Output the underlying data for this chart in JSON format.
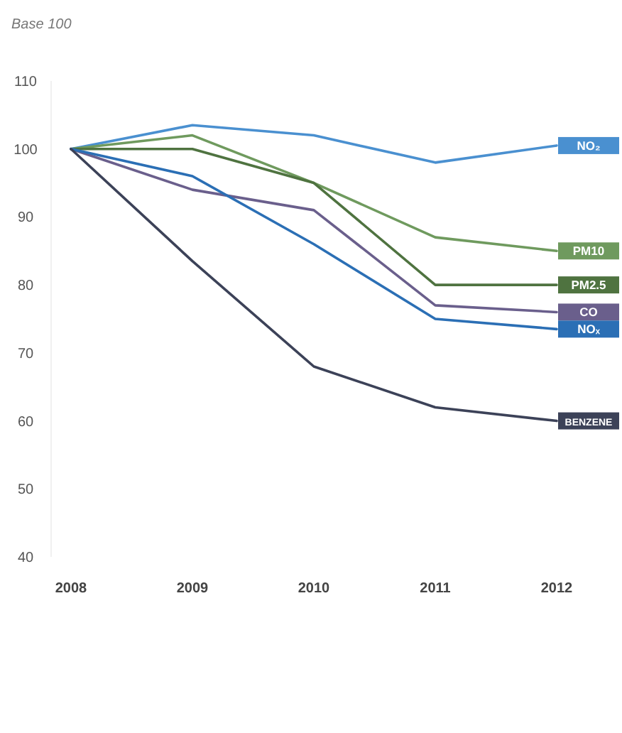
{
  "chart_data": {
    "type": "line",
    "ylabel": "Base 100",
    "categories": [
      "2008",
      "2009",
      "2010",
      "2011",
      "2012"
    ],
    "ylim": [
      40,
      110
    ],
    "yticks": [
      40,
      50,
      60,
      70,
      80,
      90,
      100,
      110
    ],
    "grid": false,
    "legend": "right",
    "marker": "none",
    "line_style": "solid",
    "series": [
      {
        "name": "NO₂",
        "color": "#4a90d0",
        "values": [
          100,
          103.5,
          102,
          98,
          100.5
        ]
      },
      {
        "name": "PM10",
        "color": "#6f9a5e",
        "values": [
          100,
          102,
          95,
          87,
          85
        ]
      },
      {
        "name": "PM2.5",
        "color": "#4f7340",
        "values": [
          100,
          100,
          95,
          80,
          80
        ]
      },
      {
        "name": "CO",
        "color": "#6a5f8c",
        "values": [
          100,
          94,
          91,
          77,
          76
        ]
      },
      {
        "name": "NOₓ",
        "color": "#2b6fb5",
        "values": [
          100,
          96,
          86,
          75,
          73.5
        ]
      },
      {
        "name": "BENZENE",
        "color": "#3c4258",
        "values": [
          100,
          83.5,
          68,
          62,
          60
        ]
      }
    ]
  }
}
